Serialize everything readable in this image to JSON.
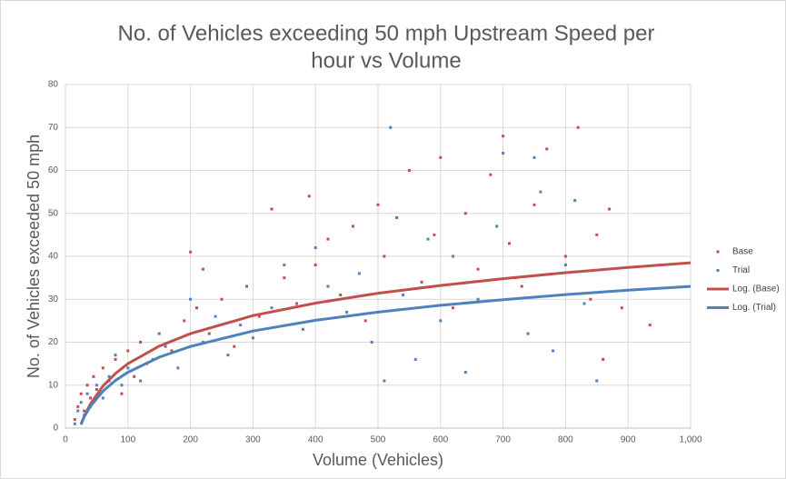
{
  "chart_data": {
    "type": "scatter",
    "title": [
      "No. of Vehicles exceeding 50 mph Upstream Speed per",
      "hour vs Volume"
    ],
    "x_label": "Volume (Vehicles)",
    "y_label": "No. of Vehicles exceeded 50 mph",
    "xlim": [
      0,
      1000
    ],
    "ylim": [
      0,
      80
    ],
    "xticks": [
      0,
      100,
      200,
      300,
      400,
      500,
      600,
      700,
      800,
      900,
      {
        "value": 1000,
        "label": "1,000"
      }
    ],
    "yticks": [
      0,
      10,
      20,
      30,
      40,
      50,
      60,
      70,
      80
    ],
    "grid": true,
    "legend": "right",
    "series": [
      {
        "name": "Base",
        "color": "#c0504d",
        "mode": "markers",
        "x": [
          15,
          20,
          25,
          30,
          35,
          40,
          45,
          50,
          60,
          70,
          80,
          90,
          100,
          110,
          120,
          130,
          150,
          170,
          190,
          200,
          210,
          220,
          230,
          250,
          270,
          290,
          310,
          330,
          350,
          370,
          390,
          400,
          420,
          440,
          460,
          480,
          500,
          510,
          530,
          550,
          570,
          590,
          600,
          620,
          640,
          660,
          680,
          700,
          710,
          730,
          750,
          770,
          800,
          820,
          840,
          850,
          870,
          890,
          935,
          860
        ],
        "values": [
          2,
          5,
          8,
          4,
          10,
          7,
          12,
          9,
          14,
          11,
          16,
          8,
          18,
          12,
          20,
          15,
          22,
          18,
          25,
          41,
          28,
          37,
          22,
          30,
          19,
          33,
          26,
          51,
          35,
          29,
          54,
          38,
          44,
          31,
          47,
          25,
          52,
          40,
          49,
          60,
          34,
          45,
          63,
          28,
          50,
          37,
          59,
          68,
          43,
          33,
          52,
          65,
          40,
          70,
          30,
          45,
          51,
          28,
          24,
          16
        ]
      },
      {
        "name": "Trial",
        "color": "#4f81bd",
        "mode": "markers",
        "x": [
          15,
          20,
          25,
          30,
          35,
          40,
          50,
          60,
          70,
          80,
          90,
          100,
          120,
          140,
          160,
          180,
          200,
          220,
          240,
          260,
          280,
          300,
          330,
          350,
          380,
          400,
          420,
          450,
          470,
          490,
          510,
          520,
          540,
          560,
          580,
          600,
          620,
          640,
          660,
          690,
          700,
          720,
          740,
          760,
          780,
          800,
          815,
          830,
          850,
          750
        ],
        "values": [
          1,
          4,
          6,
          3,
          8,
          5,
          10,
          7,
          12,
          17,
          10,
          14,
          11,
          16,
          19,
          14,
          30,
          20,
          26,
          17,
          24,
          21,
          28,
          38,
          23,
          42,
          33,
          27,
          36,
          20,
          11,
          70,
          31,
          16,
          44,
          25,
          40,
          13,
          30,
          47,
          64,
          35,
          22,
          55,
          18,
          38,
          53,
          29,
          11,
          63
        ]
      },
      {
        "name": "Log. (Base)",
        "color": "#c0504d",
        "mode": "line",
        "x": [
          25,
          30,
          40,
          60,
          80,
          100,
          150,
          200,
          300,
          400,
          500,
          600,
          700,
          800,
          900,
          1000
        ],
        "values": [
          0.8,
          2.7,
          5.6,
          9.8,
          12.7,
          15.0,
          19.1,
          22.0,
          26.2,
          29.1,
          31.4,
          33.2,
          34.8,
          36.2,
          37.4,
          38.5
        ]
      },
      {
        "name": "Log. (Trial)",
        "color": "#4f81bd",
        "mode": "line",
        "x": [
          25,
          30,
          40,
          60,
          80,
          100,
          150,
          200,
          300,
          400,
          500,
          600,
          700,
          800,
          900,
          1000
        ],
        "values": [
          1.0,
          2.6,
          5.1,
          8.6,
          11.1,
          13.0,
          16.5,
          19.0,
          22.6,
          25.1,
          27.0,
          28.6,
          29.9,
          31.1,
          32.1,
          33.0
        ]
      }
    ]
  }
}
